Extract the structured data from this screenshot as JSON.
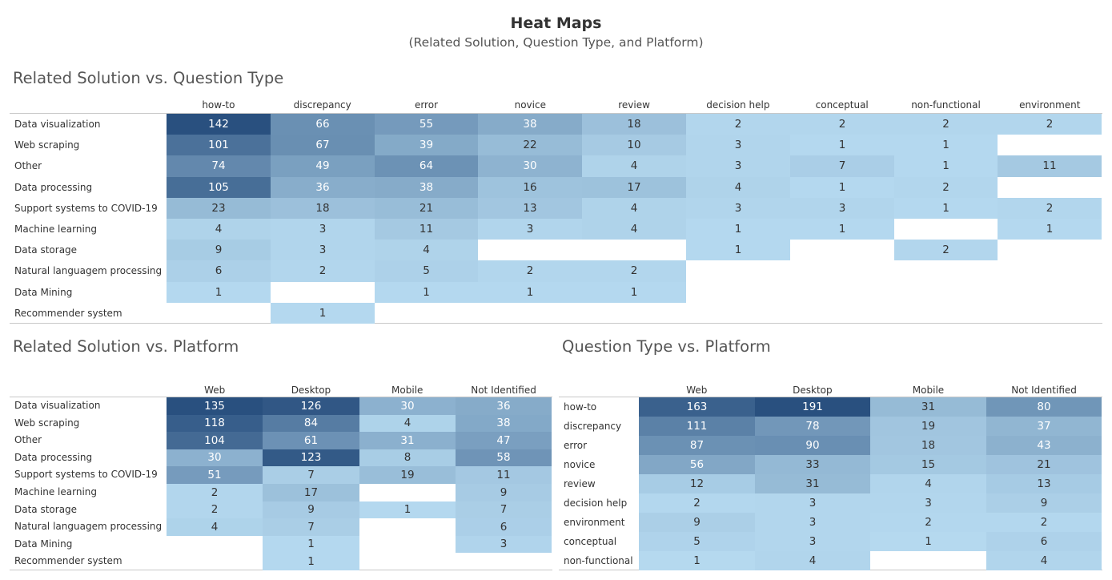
{
  "header": {
    "title": "Heat Maps",
    "subtitle": "(Related Solution, Question Type, and Platform)"
  },
  "colors": {
    "low": "#b7dbf1",
    "high": "#29507f",
    "text_light": "#ffffff",
    "text_dark": "#333333"
  },
  "chart_data": [
    {
      "type": "heatmap",
      "title": "Related Solution vs. Question Type",
      "columns": [
        "how-to",
        "discrepancy",
        "error",
        "novice",
        "review",
        "decision help",
        "conceptual",
        "non-functional",
        "environment"
      ],
      "rows": [
        "Data visualization",
        "Web scraping",
        "Other",
        "Data processing",
        "Support systems to COVID-19",
        "Machine learning",
        "Data storage",
        "Natural languagem processing",
        "Data Mining",
        "Recommender system"
      ],
      "values": [
        [
          142,
          66,
          55,
          38,
          18,
          2,
          2,
          2,
          2
        ],
        [
          101,
          67,
          39,
          22,
          10,
          3,
          1,
          1,
          null
        ],
        [
          74,
          49,
          64,
          30,
          4,
          3,
          7,
          1,
          11
        ],
        [
          105,
          36,
          38,
          16,
          17,
          4,
          1,
          2,
          null
        ],
        [
          23,
          18,
          21,
          13,
          4,
          3,
          3,
          1,
          2
        ],
        [
          4,
          3,
          11,
          3,
          4,
          1,
          1,
          null,
          1
        ],
        [
          9,
          3,
          4,
          null,
          null,
          1,
          null,
          2,
          null
        ],
        [
          6,
          2,
          5,
          2,
          2,
          null,
          null,
          null,
          null
        ],
        [
          1,
          null,
          1,
          1,
          1,
          null,
          null,
          null,
          null
        ],
        [
          null,
          1,
          null,
          null,
          null,
          null,
          null,
          null,
          null
        ]
      ]
    },
    {
      "type": "heatmap",
      "title": "Related Solution vs. Platform",
      "columns": [
        "Web",
        "Desktop",
        "Mobile",
        "Not Identified"
      ],
      "rows": [
        "Data visualization",
        "Web scraping",
        "Other",
        "Data processing",
        "Support systems to COVID-19",
        "Machine learning",
        "Data storage",
        "Natural languagem processing",
        "Data Mining",
        "Recommender system"
      ],
      "values": [
        [
          135,
          126,
          30,
          36
        ],
        [
          118,
          84,
          4,
          38
        ],
        [
          104,
          61,
          31,
          47
        ],
        [
          30,
          123,
          8,
          58
        ],
        [
          51,
          7,
          19,
          11
        ],
        [
          2,
          17,
          null,
          9
        ],
        [
          2,
          9,
          1,
          7
        ],
        [
          4,
          7,
          null,
          6
        ],
        [
          null,
          1,
          null,
          3
        ],
        [
          null,
          1,
          null,
          null
        ]
      ]
    },
    {
      "type": "heatmap",
      "title": "Question Type vs. Platform",
      "columns": [
        "Web",
        "Desktop",
        "Mobile",
        "Not Identified"
      ],
      "rows": [
        "how-to",
        "discrepancy",
        "error",
        "novice",
        "review",
        "decision help",
        "environment",
        "conceptual",
        "non-functional"
      ],
      "values": [
        [
          163,
          191,
          31,
          80
        ],
        [
          111,
          78,
          19,
          37
        ],
        [
          87,
          90,
          18,
          43
        ],
        [
          56,
          33,
          15,
          21
        ],
        [
          12,
          31,
          4,
          13
        ],
        [
          2,
          3,
          3,
          9
        ],
        [
          9,
          3,
          2,
          2
        ],
        [
          5,
          3,
          1,
          6
        ],
        [
          1,
          4,
          null,
          4
        ]
      ]
    }
  ]
}
